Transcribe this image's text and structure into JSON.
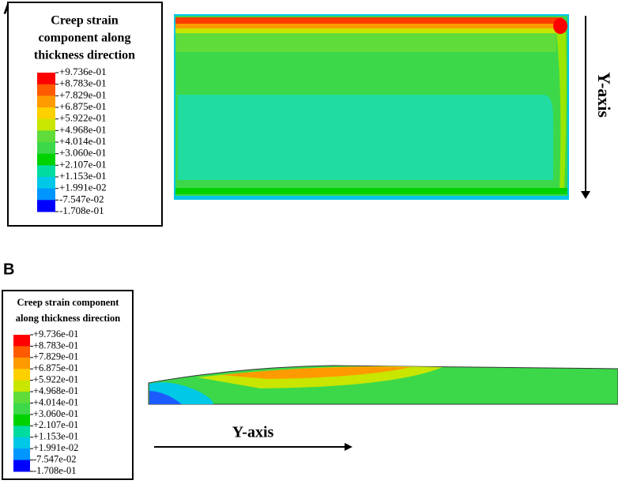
{
  "panels": [
    {
      "label": "A",
      "legend_title": [
        "Creep strain",
        "component along",
        "thickness direction"
      ],
      "legend_labels": [
        "+9.736e-01",
        "+8.783e-01",
        "+7.829e-01",
        "+6.875e-01",
        "+5.922e-01",
        "+4.968e-01",
        "+4.014e-01",
        "+3.060e-01",
        "+2.107e-01",
        "+1.153e-01",
        "+1.991e-02",
        "-7.547e-02",
        "-1.708e-01"
      ],
      "axis_label": "Y-axis"
    },
    {
      "label": "B",
      "legend_title": [
        "Creep strain component",
        "along thickness direction"
      ],
      "legend_labels": [
        "+9.736e-01",
        "+8.783e-01",
        "+7.829e-01",
        "+6.875e-01",
        "+5.922e-01",
        "+4.968e-01",
        "+4.014e-01",
        "+3.060e-01",
        "+2.107e-01",
        "+1.153e-01",
        "+1.991e-02",
        "-7.547e-02",
        "-1.708e-01"
      ],
      "axis_label": "Y-axis"
    }
  ]
}
